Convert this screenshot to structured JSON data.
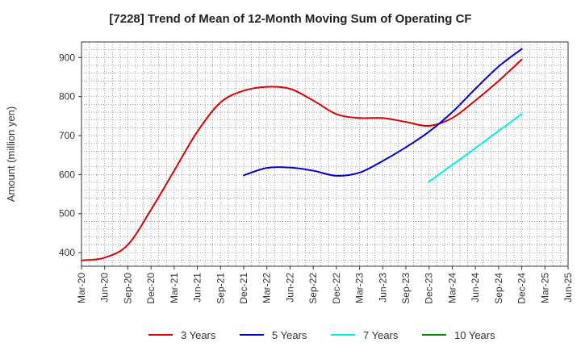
{
  "chart_data": {
    "type": "line",
    "title": "[7228]  Trend of Mean of 12-Month Moving Sum of Operating CF",
    "xlabel": "",
    "ylabel": "Amount (million yen)",
    "ylim": [
      365,
      940
    ],
    "yticks": [
      400,
      500,
      600,
      700,
      800,
      900
    ],
    "categories": [
      "Mar-20",
      "Jun-20",
      "Sep-20",
      "Dec-20",
      "Mar-21",
      "Jun-21",
      "Sep-21",
      "Dec-21",
      "Mar-22",
      "Jun-22",
      "Sep-22",
      "Dec-22",
      "Mar-23",
      "Jun-23",
      "Sep-23",
      "Dec-23",
      "Mar-24",
      "Jun-24",
      "Sep-24",
      "Dec-24",
      "Mar-25",
      "Jun-25"
    ],
    "legend_position": "bottom",
    "grid": true,
    "series": [
      {
        "name": "3 Years",
        "color": "#dd0000",
        "values": [
          380,
          387,
          420,
          510,
          610,
          710,
          785,
          815,
          825,
          820,
          790,
          755,
          745,
          745,
          735,
          725,
          745,
          790,
          840,
          895,
          null,
          null
        ]
      },
      {
        "name": "5 Years",
        "color": "#0000cc",
        "values": [
          null,
          null,
          null,
          null,
          null,
          null,
          null,
          598,
          617,
          618,
          610,
          597,
          605,
          635,
          670,
          710,
          760,
          820,
          877,
          922,
          null,
          null
        ]
      },
      {
        "name": "7 Years",
        "color": "#00eeee",
        "values": [
          null,
          null,
          null,
          null,
          null,
          null,
          null,
          null,
          null,
          null,
          null,
          null,
          null,
          null,
          null,
          582,
          625,
          668,
          712,
          755,
          null,
          null
        ]
      },
      {
        "name": "10 Years",
        "color": "#008800",
        "values": [
          null,
          null,
          null,
          null,
          null,
          null,
          null,
          null,
          null,
          null,
          null,
          null,
          null,
          null,
          null,
          null,
          null,
          null,
          null,
          null,
          null,
          null
        ]
      }
    ]
  }
}
